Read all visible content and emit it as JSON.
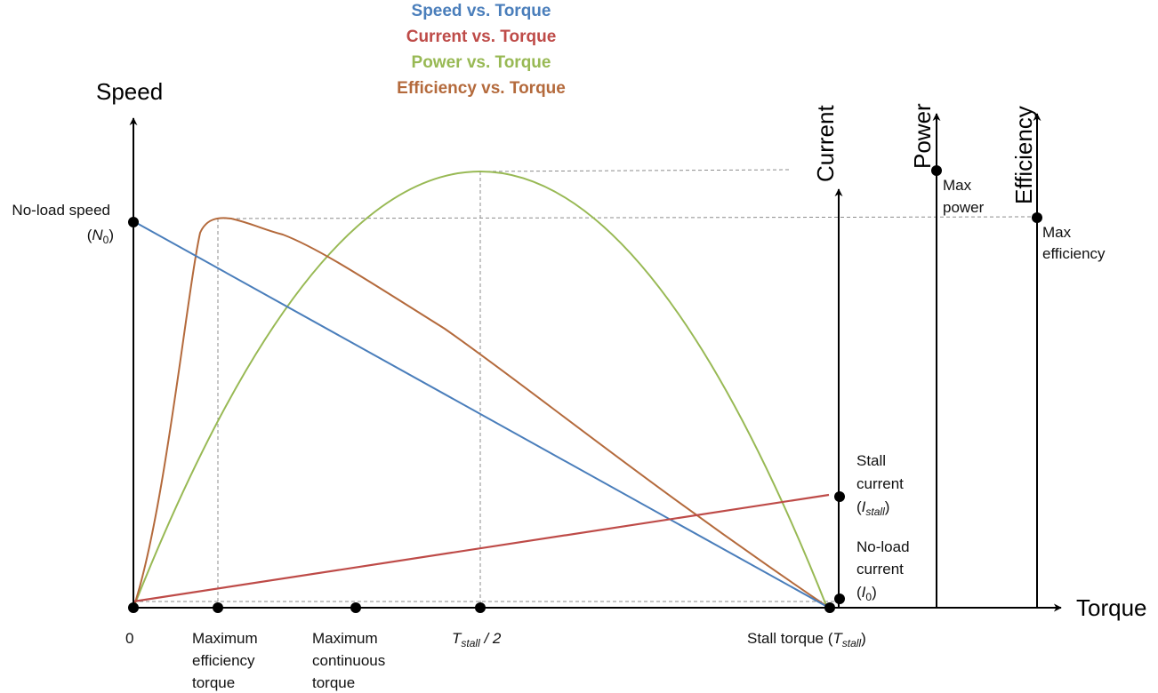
{
  "legend": {
    "speed": "Speed vs. Torque",
    "current": "Current vs. Torque",
    "power": "Power vs. Torque",
    "efficiency": "Efficiency vs. Torque"
  },
  "colors": {
    "speed": "#4a7ebb",
    "current": "#be4b48",
    "power": "#98b954",
    "efficiency": "#b46a3c"
  },
  "axes": {
    "speed": "Speed",
    "torque": "Torque",
    "current": "Current",
    "power": "Power",
    "efficiency": "Efficiency"
  },
  "labels": {
    "no_load_speed": "No-load speed",
    "no_load_speed_sym": "N",
    "no_load_speed_sub": "0",
    "max_power_1": "Max",
    "max_power_2": "power",
    "max_eff_1": "Max",
    "max_eff_2": "efficiency",
    "stall_current_1": "Stall",
    "stall_current_2": "current",
    "stall_current_sym": "I",
    "stall_current_sub": "stall",
    "no_load_current_1": "No-load",
    "no_load_current_2": "current",
    "no_load_current_sym": "I",
    "no_load_current_sub": "0",
    "origin": "0",
    "max_eff_torque_1": "Maximum",
    "max_eff_torque_2": "efficiency",
    "max_eff_torque_3": "torque",
    "max_cont_torque_1": "Maximum",
    "max_cont_torque_2": "continuous",
    "max_cont_torque_3": "torque",
    "half_stall_sym": "T",
    "half_stall_sub": "stall",
    "half_stall_suffix": " / 2",
    "stall_torque": "Stall torque",
    "stall_torque_sym": "T",
    "stall_torque_sub": "stall"
  }
}
